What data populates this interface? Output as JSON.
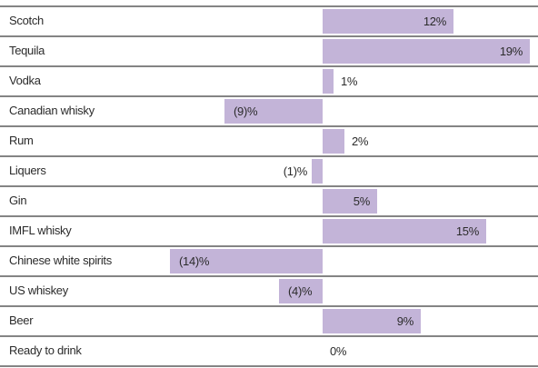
{
  "chart_data": {
    "type": "bar",
    "orientation": "horizontal",
    "categories": [
      "Scotch",
      "Tequila",
      "Vodka",
      "Canadian whisky",
      "Rum",
      "Liquers",
      "Gin",
      "IMFL whisky",
      "Chinese white spirits",
      "US whiskey",
      "Beer",
      "Ready to drink"
    ],
    "values": [
      12,
      19,
      1,
      -9,
      2,
      -1,
      5,
      15,
      -14,
      -4,
      9,
      0
    ],
    "value_labels": [
      "12%",
      "19%",
      "1%",
      "(9)%",
      "2%",
      "(1)%",
      "5%",
      "15%",
      "(14)%",
      "(4)%",
      "9%",
      "0%"
    ],
    "color": "#c3b4d8",
    "xlim": [
      -15,
      19.5
    ]
  }
}
